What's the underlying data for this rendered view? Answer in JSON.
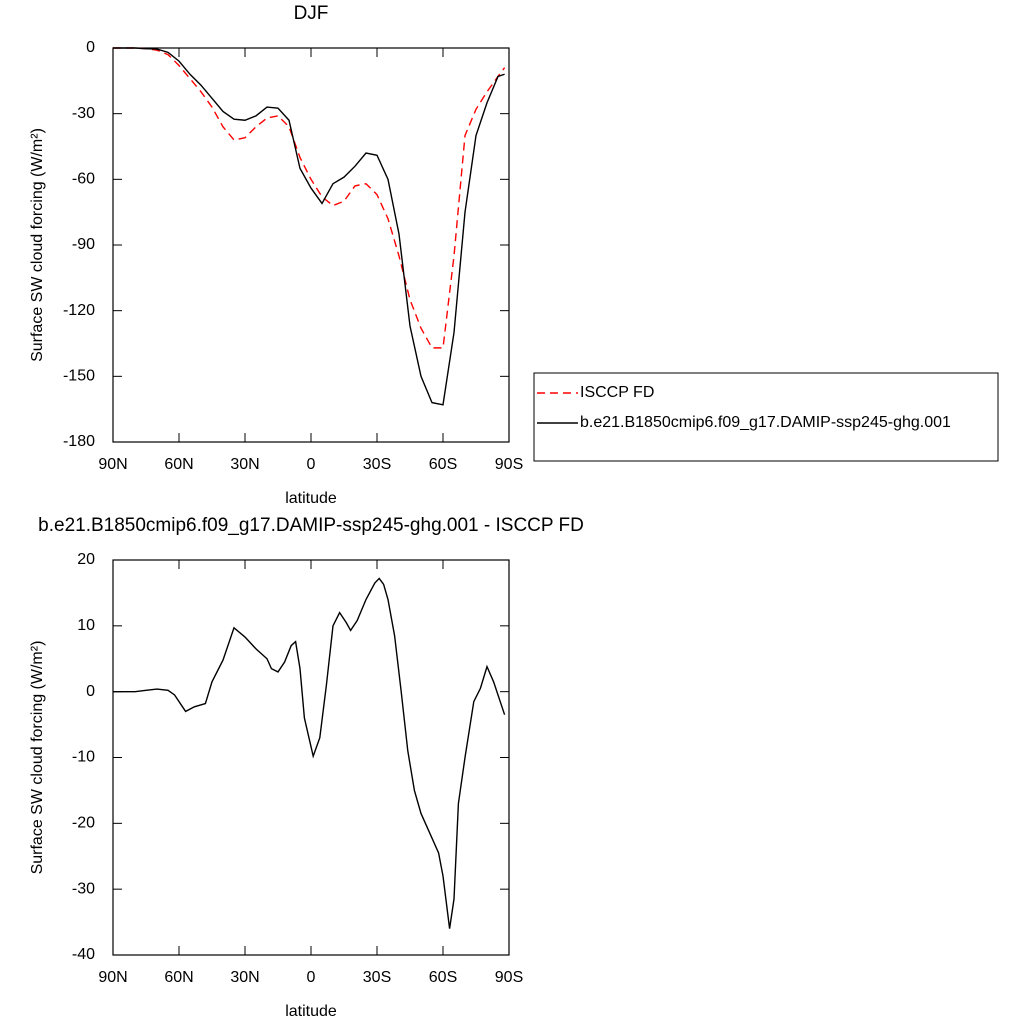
{
  "chart_data": [
    {
      "type": "line",
      "title": "DJF",
      "x_label": "latitude",
      "y_label": "Surface SW cloud forcing (W/m²)",
      "x": [
        90,
        85,
        80,
        75,
        70,
        65,
        60,
        55,
        50,
        45,
        40,
        35,
        30,
        25,
        20,
        15,
        10,
        5,
        0,
        -5,
        -10,
        -15,
        -20,
        -25,
        -30,
        -35,
        -40,
        -45,
        -50,
        -55,
        -60,
        -65,
        -70,
        -75,
        -80,
        -85,
        -88
      ],
      "series": [
        {
          "name": "ISCCP FD",
          "color": "#ff0000",
          "line_style": "dashed",
          "values": [
            0,
            0,
            0,
            -0.3,
            -1,
            -3,
            -8,
            -14,
            -20,
            -27,
            -36,
            -42,
            -41,
            -36,
            -32,
            -31,
            -36,
            -50,
            -60,
            -68,
            -72,
            -70,
            -63,
            -62,
            -67,
            -78,
            -95,
            -115,
            -128,
            -137,
            -137,
            -95,
            -40,
            -28,
            -20,
            -13,
            -9
          ]
        },
        {
          "name": "b.e21.B1850cmip6.f09_g17.DAMIP-ssp245-ghg.001",
          "color": "#000000",
          "line_style": "solid",
          "values": [
            0,
            0,
            0,
            -0.3,
            -0.5,
            -2,
            -6,
            -12,
            -17,
            -23,
            -29,
            -32.5,
            -33,
            -31,
            -27,
            -27.5,
            -33,
            -55,
            -64,
            -71,
            -62,
            -59,
            -54,
            -48,
            -49,
            -60,
            -85,
            -127,
            -150,
            -162,
            -163,
            -130,
            -75,
            -40,
            -25,
            -13,
            -12
          ]
        }
      ],
      "xlim": [
        90,
        -90
      ],
      "xticks": [
        {
          "value": 90,
          "label": "90N"
        },
        {
          "value": 60,
          "label": "60N"
        },
        {
          "value": 30,
          "label": "30N"
        },
        0,
        {
          "value": -30,
          "label": "30S"
        },
        {
          "value": -60,
          "label": "60S"
        },
        {
          "value": -90,
          "label": "90S"
        }
      ],
      "ylim": [
        -180,
        0
      ],
      "yticks": [
        0,
        -30,
        -60,
        -90,
        -120,
        -150,
        -180
      ],
      "legend": "right"
    },
    {
      "type": "line",
      "title": "b.e21.B1850cmip6.f09_g17.DAMIP-ssp245-ghg.001 - ISCCP FD",
      "x_label": "latitude",
      "y_label": "Surface SW cloud forcing (W/m²)",
      "x": [
        90,
        80,
        75,
        70,
        65,
        62,
        57,
        53,
        48,
        45,
        40,
        35,
        30,
        25,
        20,
        18,
        15,
        12,
        9,
        7,
        5,
        3,
        -1,
        -4,
        -7,
        -10,
        -13,
        -16,
        -18,
        -21,
        -25,
        -29,
        -31,
        -33,
        -35,
        -38,
        -41,
        -44,
        -47,
        -50,
        -54,
        -58,
        -60,
        -63,
        -65,
        -67,
        -70,
        -74,
        -77,
        -80,
        -83,
        -86,
        -88
      ],
      "series": [
        {
          "color": "#000000",
          "line_style": "solid",
          "values": [
            0,
            0,
            0.2,
            0.4,
            0.2,
            -0.5,
            -3,
            -2.3,
            -1.8,
            1.5,
            4.8,
            9.7,
            8.3,
            6.5,
            5,
            3.5,
            3,
            4.5,
            7,
            7.6,
            3.5,
            -4,
            -9.8,
            -7,
            1,
            10,
            12,
            10.5,
            9.3,
            10.8,
            14,
            16.5,
            17.2,
            16.3,
            14,
            8.5,
            0,
            -9,
            -15,
            -18.5,
            -21.5,
            -24.5,
            -28,
            -36,
            -31.5,
            -17,
            -10,
            -1.5,
            0.5,
            3.8,
            1.5,
            -1.5,
            -3.5
          ]
        }
      ],
      "xlim": [
        90,
        -90
      ],
      "xticks": [
        {
          "value": 90,
          "label": "90N"
        },
        {
          "value": 60,
          "label": "60N"
        },
        {
          "value": 30,
          "label": "30N"
        },
        0,
        {
          "value": -30,
          "label": "30S"
        },
        {
          "value": -60,
          "label": "60S"
        },
        {
          "value": -90,
          "label": "90S"
        }
      ],
      "ylim": [
        -40,
        20
      ],
      "yticks": [
        -40,
        -30,
        -20,
        -10,
        0,
        10,
        20
      ]
    }
  ]
}
